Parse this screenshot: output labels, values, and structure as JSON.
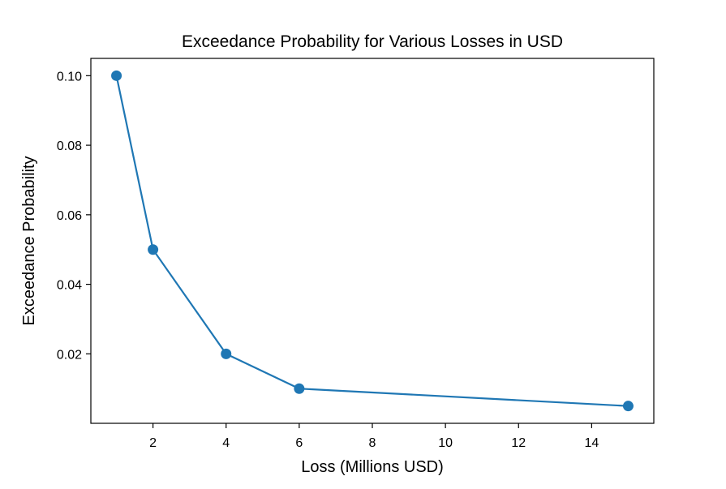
{
  "chart_data": {
    "type": "line",
    "title": "Exceedance Probability for Various Losses in USD",
    "xlabel": "Loss (Millions USD)",
    "ylabel": "Exceedance Probability",
    "x": [
      1,
      2,
      4,
      6,
      15
    ],
    "series": [
      {
        "name": "Exceedance Probability",
        "values": [
          0.1,
          0.05,
          0.02,
          0.01,
          0.005
        ],
        "color": "#1f77b4",
        "marker": "circle"
      }
    ],
    "xlim": [
      0.3,
      15.7
    ],
    "ylim": [
      2.5e-05,
      0.104975
    ],
    "xticks": [
      2,
      4,
      6,
      8,
      10,
      12,
      14
    ],
    "xtick_labels": [
      "2",
      "4",
      "6",
      "8",
      "10",
      "12",
      "14"
    ],
    "yticks": [
      0.02,
      0.04,
      0.06,
      0.08,
      0.1
    ],
    "ytick_labels": [
      "0.02",
      "0.04",
      "0.06",
      "0.08",
      "0.10"
    ],
    "grid": false,
    "legend": "none"
  }
}
